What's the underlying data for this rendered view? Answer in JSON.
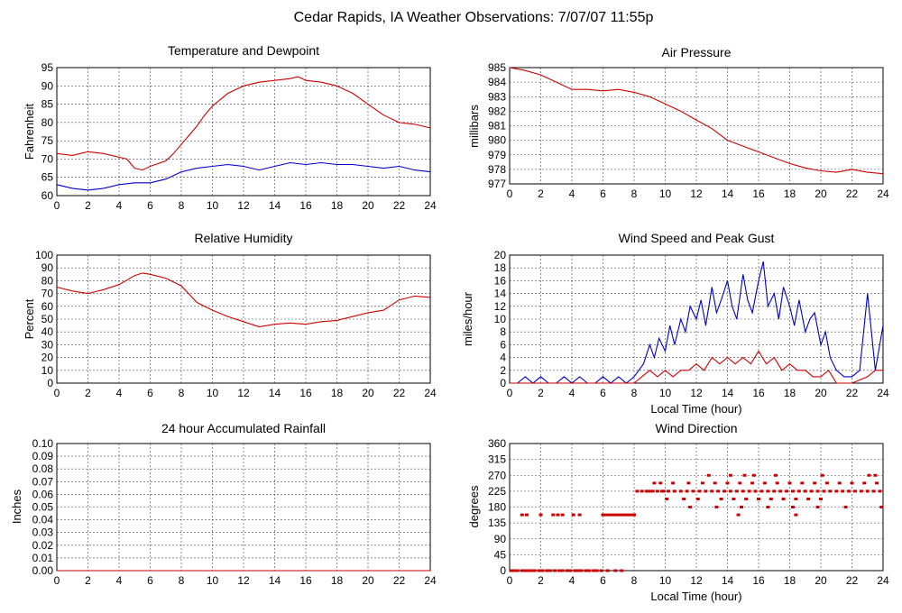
{
  "figure": {
    "title": "Cedar Rapids, IA Weather Observations: 7/07/07 11:55p"
  },
  "chart_data": [
    {
      "id": "temp",
      "type": "line",
      "title": "Temperature and Dewpoint",
      "xlabel": "",
      "ylabel": "Fahrenheit",
      "xlim": [
        0,
        24
      ],
      "ylim": [
        60,
        95
      ],
      "xticks": [
        0,
        2,
        4,
        6,
        8,
        10,
        12,
        14,
        16,
        18,
        20,
        22,
        24
      ],
      "yticks": [
        60,
        65,
        70,
        75,
        80,
        85,
        90,
        95
      ],
      "grid": true,
      "series": [
        {
          "color": "#cc0000",
          "x": [
            0,
            1,
            2,
            3,
            4,
            4.5,
            5,
            5.5,
            6,
            7,
            7.5,
            8,
            8.5,
            9,
            9.5,
            10,
            11,
            12,
            13,
            14,
            15,
            15.5,
            16,
            17,
            18,
            19,
            20,
            21,
            22,
            23,
            24
          ],
          "y": [
            71.5,
            71,
            72,
            71.5,
            70.5,
            70,
            67.5,
            67,
            68,
            69.5,
            71.5,
            74,
            76.5,
            79,
            82,
            84.5,
            88,
            90,
            91,
            91.5,
            92,
            92.5,
            91.5,
            91,
            90,
            88,
            85,
            82,
            80,
            79.5,
            78.5
          ]
        },
        {
          "color": "#0000cc",
          "x": [
            0,
            1,
            2,
            3,
            4,
            5,
            6,
            7,
            8,
            9,
            10,
            11,
            12,
            13,
            14,
            15,
            16,
            17,
            18,
            19,
            20,
            21,
            22,
            23,
            24
          ],
          "y": [
            63,
            62,
            61.5,
            62,
            63,
            63.5,
            63.5,
            64.5,
            66.5,
            67.5,
            68,
            68.5,
            68,
            67,
            68,
            69,
            68.5,
            69,
            68.5,
            68.5,
            68,
            67.5,
            68,
            67,
            66.5
          ]
        }
      ]
    },
    {
      "id": "pressure",
      "type": "line",
      "title": "Air Pressure",
      "xlabel": "",
      "ylabel": "millibars",
      "xlim": [
        0,
        24
      ],
      "ylim": [
        977,
        985
      ],
      "xticks": [
        0,
        2,
        4,
        6,
        8,
        10,
        12,
        14,
        16,
        18,
        20,
        22,
        24
      ],
      "yticks": [
        977,
        978,
        979,
        980,
        981,
        982,
        983,
        984,
        985
      ],
      "grid": true,
      "series": [
        {
          "color": "#cc0000",
          "x": [
            0,
            1,
            2,
            3,
            4,
            5,
            6,
            7,
            8,
            9,
            10,
            11,
            12,
            13,
            14,
            15,
            16,
            17,
            18,
            19,
            20,
            21,
            22,
            23,
            24
          ],
          "y": [
            985,
            984.8,
            984.5,
            984,
            983.5,
            983.5,
            983.4,
            983.5,
            983.3,
            983,
            982.5,
            982,
            981.4,
            980.8,
            980,
            979.6,
            979.2,
            978.8,
            978.4,
            978.1,
            977.9,
            977.8,
            978,
            977.8,
            977.7
          ]
        }
      ]
    },
    {
      "id": "rh",
      "type": "line",
      "title": "Relative Humidity",
      "xlabel": "",
      "ylabel": "Percent",
      "xlim": [
        0,
        24
      ],
      "ylim": [
        0,
        100
      ],
      "xticks": [
        0,
        2,
        4,
        6,
        8,
        10,
        12,
        14,
        16,
        18,
        20,
        22,
        24
      ],
      "yticks": [
        0,
        10,
        20,
        30,
        40,
        50,
        60,
        70,
        80,
        90,
        100
      ],
      "grid": true,
      "series": [
        {
          "color": "#cc0000",
          "x": [
            0,
            1,
            2,
            3,
            4,
            5,
            5.5,
            6,
            7,
            8,
            9,
            10,
            11,
            12,
            13,
            14,
            15,
            16,
            17,
            18,
            19,
            20,
            21,
            22,
            23,
            24
          ],
          "y": [
            75,
            72,
            70,
            73,
            77,
            84,
            86,
            85,
            82,
            76,
            63,
            57,
            52,
            48,
            44,
            46,
            47,
            46,
            48,
            49,
            52,
            55,
            57,
            65,
            68,
            67
          ]
        }
      ]
    },
    {
      "id": "wind",
      "type": "line",
      "title": "Wind Speed and Peak Gust",
      "xlabel": "Local Time (hour)",
      "ylabel": "miles/hour",
      "xlim": [
        0,
        24
      ],
      "ylim": [
        0,
        20
      ],
      "xticks": [
        0,
        2,
        4,
        6,
        8,
        10,
        12,
        14,
        16,
        18,
        20,
        22,
        24
      ],
      "yticks": [
        0,
        2,
        4,
        6,
        8,
        10,
        12,
        14,
        16,
        18,
        20
      ],
      "grid": true,
      "series": [
        {
          "color": "#0000cc",
          "x": [
            0,
            0.5,
            1,
            1.5,
            2,
            2.5,
            3,
            3.5,
            4,
            4.5,
            5,
            5.5,
            6,
            6.5,
            7,
            7.5,
            8,
            8.3,
            8.6,
            9,
            9.3,
            9.6,
            10,
            10.3,
            10.6,
            11,
            11.3,
            11.6,
            12,
            12.3,
            12.6,
            13,
            13.3,
            13.6,
            14,
            14.3,
            14.6,
            15,
            15.3,
            15.6,
            16,
            16.3,
            16.6,
            17,
            17.3,
            17.6,
            18,
            18.3,
            18.6,
            19,
            19.3,
            19.6,
            20,
            20.3,
            20.6,
            21,
            21.5,
            22,
            22.5,
            23,
            23.5,
            24
          ],
          "y": [
            0,
            0,
            1,
            0,
            1,
            0,
            0,
            1,
            0,
            1,
            0,
            0,
            1,
            0,
            1,
            0,
            1,
            2,
            3,
            6,
            4,
            7,
            5,
            9,
            6,
            10,
            8,
            12,
            10,
            13,
            9,
            15,
            11,
            13,
            16,
            12,
            10,
            17,
            13,
            11,
            16,
            19,
            12,
            14,
            10,
            15,
            12,
            9,
            13,
            8,
            10,
            11,
            6,
            8,
            4,
            2,
            1,
            1,
            2,
            14,
            2,
            9
          ]
        },
        {
          "color": "#cc0000",
          "x": [
            0,
            1,
            2,
            3,
            4,
            5,
            6,
            7,
            8,
            8.5,
            9,
            9.5,
            10,
            10.5,
            11,
            11.5,
            12,
            12.5,
            13,
            13.5,
            14,
            14.5,
            15,
            15.5,
            16,
            16.5,
            17,
            17.5,
            18,
            18.5,
            19,
            19.5,
            20,
            20.5,
            21,
            22,
            23,
            23.5,
            24
          ],
          "y": [
            0,
            0,
            0,
            0,
            0,
            0,
            0,
            0,
            0,
            1,
            2,
            1,
            2,
            1,
            2,
            2,
            3,
            2,
            4,
            3,
            4,
            3,
            4,
            3,
            5,
            3,
            4,
            2,
            3,
            2,
            2,
            1,
            1,
            2,
            0,
            0,
            1,
            2,
            2
          ]
        }
      ]
    },
    {
      "id": "rain",
      "type": "line",
      "title": "24 hour Accumulated Rainfall",
      "xlabel": "",
      "ylabel": "Inches",
      "xlim": [
        0,
        24
      ],
      "ylim": [
        0,
        0.1
      ],
      "xticks": [
        0,
        2,
        4,
        6,
        8,
        10,
        12,
        14,
        16,
        18,
        20,
        22,
        24
      ],
      "yticks": [
        "0.00",
        "0.01",
        "0.02",
        "0.03",
        "0.04",
        "0.05",
        "0.06",
        "0.07",
        "0.08",
        "0.09",
        "0.10"
      ],
      "grid": true,
      "series": [
        {
          "color": "#cc0000",
          "x": [
            0,
            24
          ],
          "y": [
            0,
            0
          ]
        }
      ]
    },
    {
      "id": "dir",
      "type": "scatter",
      "title": "Wind Direction",
      "xlabel": "Local Time (hour)",
      "ylabel": "degrees",
      "xlim": [
        0,
        24
      ],
      "ylim": [
        0,
        360
      ],
      "xticks": [
        0,
        2,
        4,
        6,
        8,
        10,
        12,
        14,
        16,
        18,
        20,
        22,
        24
      ],
      "yticks": [
        0,
        45,
        90,
        135,
        180,
        225,
        270,
        315,
        360
      ],
      "grid": true,
      "series": [
        {
          "color": "#cc0000",
          "x": [
            0.1,
            0.3,
            0.5,
            0.8,
            1,
            1.2,
            1.4,
            1.6,
            1.9,
            2.1,
            2.4,
            2.6,
            2.9,
            3.2,
            3.4,
            3.7,
            3.9,
            4.2,
            4.4,
            4.6,
            4.9,
            5.1,
            5.4,
            5.6,
            5.9,
            6.3,
            6.8,
            7.2,
            0.8,
            1.1,
            2,
            2.8,
            3.1,
            3.4,
            4.1,
            4.5,
            6,
            6.2,
            6.4,
            6.6,
            6.8,
            7,
            7.2,
            7.4,
            7.6,
            7.8,
            8,
            8.2,
            8.5,
            8.8,
            9,
            9.2,
            9.5,
            9.8,
            10.2,
            10.6,
            11,
            11.4,
            11.8,
            12.2,
            12.6,
            13,
            13.4,
            13.8,
            14.2,
            14.6,
            15,
            15.4,
            15.8,
            16.2,
            16.6,
            17,
            17.4,
            17.8,
            18.2,
            18.6,
            19,
            19.4,
            19.8,
            20.2,
            20.6,
            21,
            21.4,
            21.8,
            22.2,
            22.6,
            23,
            23.4,
            23.8,
            9.3,
            9.7,
            10.5,
            11.5,
            12.4,
            13.2,
            14,
            14.8,
            15.6,
            16.4,
            17.2,
            18,
            18.8,
            19.6,
            20.4,
            21.2,
            22,
            22.8,
            23.6,
            10.1,
            11.2,
            12.1,
            13.6,
            14.4,
            15.2,
            16,
            16.8,
            17.6,
            18.4,
            19.2,
            20,
            11.6,
            13.3,
            14.9,
            16.6,
            18.2,
            19.8,
            21.6,
            23.9,
            9.9,
            12.8,
            14.2,
            15.1,
            15.7,
            17.1,
            20.1,
            23.1,
            23.5,
            14.7,
            18.4
          ],
          "y": [
            0,
            0,
            0,
            0,
            0,
            0,
            0,
            0,
            0,
            0,
            0,
            0,
            0,
            0,
            0,
            0,
            0,
            0,
            0,
            0,
            0,
            0,
            0,
            0,
            0,
            0,
            0,
            0,
            158,
            158,
            158,
            158,
            158,
            158,
            158,
            158,
            158,
            158,
            158,
            158,
            158,
            158,
            158,
            158,
            158,
            158,
            158,
            225,
            225,
            225,
            225,
            225,
            225,
            225,
            225,
            225,
            225,
            225,
            225,
            225,
            225,
            225,
            225,
            225,
            225,
            225,
            225,
            225,
            225,
            225,
            225,
            225,
            225,
            225,
            225,
            225,
            225,
            225,
            225,
            225,
            225,
            225,
            225,
            225,
            225,
            225,
            225,
            225,
            225,
            248,
            248,
            248,
            248,
            248,
            248,
            248,
            248,
            248,
            248,
            248,
            248,
            248,
            248,
            248,
            248,
            248,
            248,
            248,
            203,
            203,
            203,
            203,
            203,
            203,
            203,
            203,
            203,
            203,
            203,
            203,
            180,
            180,
            180,
            180,
            180,
            180,
            180,
            180,
            225,
            270,
            270,
            270,
            270,
            270,
            270,
            270,
            270,
            158,
            158
          ]
        }
      ]
    }
  ]
}
